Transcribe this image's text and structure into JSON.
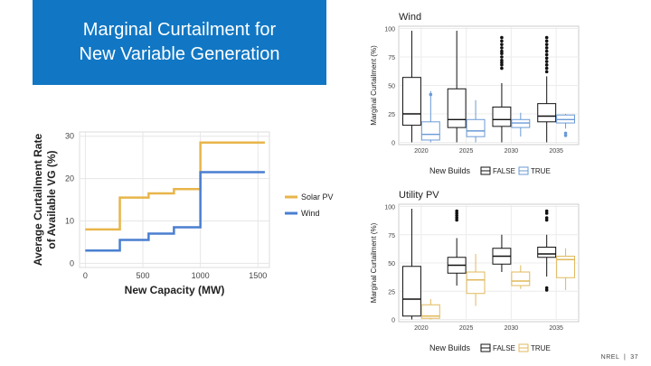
{
  "slide": {
    "title_line1": "Marginal Curtailment for",
    "title_line2": "New Variable Generation",
    "footer_org": "NREL",
    "footer_sep": "|",
    "footer_page": "37"
  },
  "colors": {
    "title_bg": "#1177c4",
    "solar": "#e8b54a",
    "wind": "#4a7fd0",
    "false_box": "#111111",
    "true_wind": "#6a9ad6",
    "true_pv": "#e0b95c"
  },
  "chart_data": [
    {
      "type": "line",
      "step": true,
      "ylabel_line1": "Average Curtailment Rate",
      "ylabel_line2": "of Available VG (%)",
      "xlabel": "New Capacity (MW)",
      "xlim": [
        -50,
        1600
      ],
      "ylim": [
        -1,
        31
      ],
      "xticks": [
        0,
        500,
        1000,
        1500
      ],
      "yticks": [
        0,
        10,
        20,
        30
      ],
      "grid": true,
      "legend_position": "right",
      "series": [
        {
          "name": "Solar PV",
          "color_key": "solar",
          "x": [
            0,
            300,
            300,
            550,
            550,
            770,
            770,
            1000,
            1000,
            1560
          ],
          "y": [
            8,
            8,
            15.5,
            15.5,
            16.5,
            16.5,
            17.5,
            17.5,
            28.5,
            28.5
          ]
        },
        {
          "name": "Wind",
          "color_key": "wind",
          "x": [
            0,
            300,
            300,
            550,
            550,
            770,
            770,
            1000,
            1000,
            1560
          ],
          "y": [
            3,
            3,
            5.5,
            5.5,
            7,
            7,
            8.5,
            8.5,
            21.5,
            21.5
          ]
        }
      ]
    },
    {
      "type": "box",
      "title": "Wind",
      "ylabel": "Marginal Curtailment (%)",
      "ylim": [
        -2,
        102
      ],
      "yticks": [
        0,
        25,
        50,
        75,
        100
      ],
      "categories": [
        "2020",
        "2025",
        "2030",
        "2035"
      ],
      "legend_title": "New Builds",
      "legend_entries": [
        "FALSE",
        "TRUE"
      ],
      "true_color_key": "true_wind",
      "boxes": [
        {
          "year": "2020",
          "group": "FALSE",
          "whisker_low": 0,
          "q1": 15,
          "median": 25,
          "q3": 57,
          "whisker_high": 98,
          "outliers": []
        },
        {
          "year": "2020",
          "group": "TRUE",
          "whisker_low": 0,
          "q1": 2,
          "median": 7,
          "q3": 18,
          "whisker_high": 45,
          "outliers": [
            42
          ]
        },
        {
          "year": "2025",
          "group": "FALSE",
          "whisker_low": 0,
          "q1": 13,
          "median": 20,
          "q3": 47,
          "whisker_high": 98,
          "outliers": []
        },
        {
          "year": "2025",
          "group": "TRUE",
          "whisker_low": 0,
          "q1": 5,
          "median": 10,
          "q3": 20,
          "whisker_high": 37,
          "outliers": []
        },
        {
          "year": "2030",
          "group": "FALSE",
          "whisker_low": 0,
          "q1": 14,
          "median": 20,
          "q3": 31,
          "whisker_high": 52,
          "outliers": [
            65,
            68,
            70,
            72,
            75,
            78,
            80,
            83,
            86,
            89,
            92
          ]
        },
        {
          "year": "2030",
          "group": "TRUE",
          "whisker_low": 5,
          "q1": 13,
          "median": 17,
          "q3": 20,
          "whisker_high": 26,
          "outliers": []
        },
        {
          "year": "2035",
          "group": "FALSE",
          "whisker_low": 0,
          "q1": 18,
          "median": 23,
          "q3": 34,
          "whisker_high": 58,
          "outliers": [
            62,
            65,
            68,
            71,
            74,
            77,
            80,
            83,
            86,
            89,
            92
          ]
        },
        {
          "year": "2035",
          "group": "TRUE",
          "whisker_low": 12,
          "q1": 17,
          "median": 20,
          "q3": 24,
          "whisker_high": 25,
          "outliers": [
            6,
            8
          ]
        }
      ]
    },
    {
      "type": "box",
      "title": "Utility PV",
      "ylabel": "Marginal Curtailment (%)",
      "ylim": [
        -2,
        102
      ],
      "yticks": [
        0,
        25,
        50,
        75,
        100
      ],
      "categories": [
        "2020",
        "2025",
        "2030",
        "2035"
      ],
      "legend_title": "New Builds",
      "legend_entries": [
        "FALSE",
        "TRUE"
      ],
      "true_color_key": "true_pv",
      "boxes": [
        {
          "year": "2020",
          "group": "FALSE",
          "whisker_low": 0,
          "q1": 3,
          "median": 18,
          "q3": 47,
          "whisker_high": 98,
          "outliers": []
        },
        {
          "year": "2020",
          "group": "TRUE",
          "whisker_low": 0,
          "q1": 1,
          "median": 3,
          "q3": 13,
          "whisker_high": 18,
          "outliers": []
        },
        {
          "year": "2025",
          "group": "FALSE",
          "whisker_low": 30,
          "q1": 41,
          "median": 48,
          "q3": 55,
          "whisker_high": 72,
          "outliers": [
            88,
            90,
            92,
            94,
            96
          ]
        },
        {
          "year": "2025",
          "group": "TRUE",
          "whisker_low": 12,
          "q1": 23,
          "median": 35,
          "q3": 42,
          "whisker_high": 58,
          "outliers": []
        },
        {
          "year": "2030",
          "group": "FALSE",
          "whisker_low": 42,
          "q1": 49,
          "median": 56,
          "q3": 63,
          "whisker_high": 75,
          "outliers": []
        },
        {
          "year": "2030",
          "group": "TRUE",
          "whisker_low": 27,
          "q1": 30,
          "median": 34,
          "q3": 42,
          "whisker_high": 48,
          "outliers": []
        },
        {
          "year": "2035",
          "group": "FALSE",
          "whisker_low": 38,
          "q1": 55,
          "median": 58,
          "q3": 64,
          "whisker_high": 75,
          "outliers": [
            26,
            28,
            88,
            90,
            94,
            96
          ]
        },
        {
          "year": "2035",
          "group": "TRUE",
          "whisker_low": 26,
          "q1": 37,
          "median": 53,
          "q3": 56,
          "whisker_high": 63,
          "outliers": []
        }
      ]
    }
  ]
}
